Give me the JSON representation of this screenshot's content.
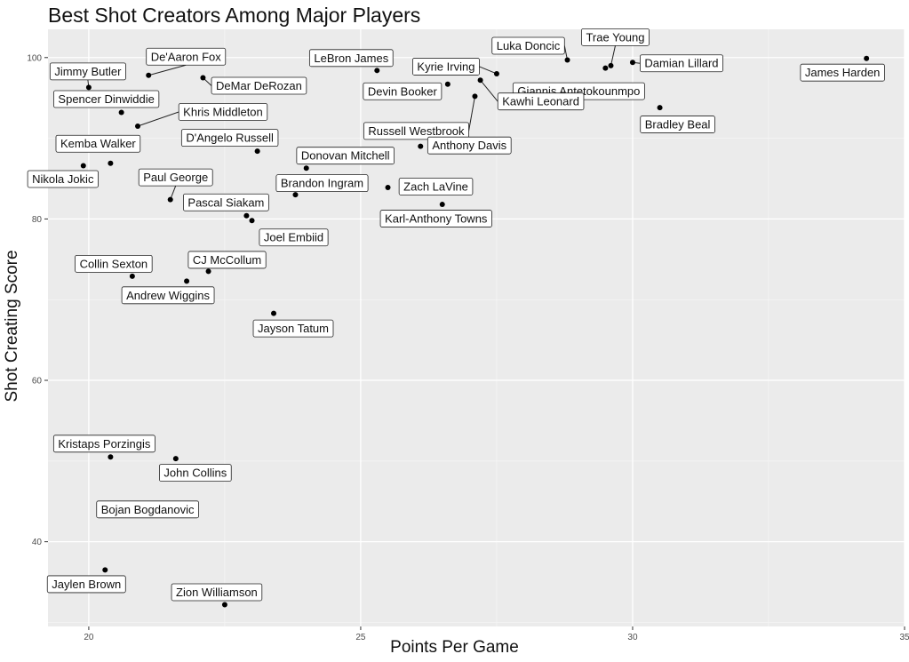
{
  "chart_data": {
    "type": "scatter",
    "title": "Best Shot Creators Among Major Players",
    "xlabel": "Points Per Game",
    "ylabel": "Shot Creating Score",
    "xlim": [
      19.25,
      35
    ],
    "ylim": [
      29.5,
      103.5
    ],
    "x_ticks": [
      20,
      25,
      30,
      35
    ],
    "y_ticks": [
      40,
      60,
      80,
      100
    ],
    "grid": true,
    "points": [
      {
        "name": "James Harden",
        "x": 34.3,
        "y": 99.9
      },
      {
        "name": "Damian Lillard",
        "x": 30.0,
        "y": 99.4
      },
      {
        "name": "Trae Young",
        "x": 29.6,
        "y": 99.0
      },
      {
        "name": "Giannis Antetokounmpo",
        "x": 29.5,
        "y": 98.7
      },
      {
        "name": "Luka Doncic",
        "x": 28.8,
        "y": 99.7
      },
      {
        "name": "Bradley Beal",
        "x": 30.5,
        "y": 93.8
      },
      {
        "name": "Kyrie Irving",
        "x": 27.5,
        "y": 98.0
      },
      {
        "name": "Kawhi Leonard",
        "x": 27.2,
        "y": 97.2
      },
      {
        "name": "Russell Westbrook",
        "x": 27.1,
        "y": 95.2
      },
      {
        "name": "Devin Booker",
        "x": 26.6,
        "y": 96.7
      },
      {
        "name": "LeBron James",
        "x": 25.3,
        "y": 98.4
      },
      {
        "name": "Anthony Davis",
        "x": 26.1,
        "y": 89.0
      },
      {
        "name": "Zach LaVine",
        "x": 25.5,
        "y": 83.9
      },
      {
        "name": "Karl-Anthony Towns",
        "x": 26.5,
        "y": 81.8
      },
      {
        "name": "Donovan Mitchell",
        "x": 24.0,
        "y": 86.3
      },
      {
        "name": "Brandon Ingram",
        "x": 23.8,
        "y": 83.0
      },
      {
        "name": "D'Angelo Russell",
        "x": 23.1,
        "y": 88.4
      },
      {
        "name": "Pascal Siakam",
        "x": 22.9,
        "y": 80.4
      },
      {
        "name": "Joel Embiid",
        "x": 23.0,
        "y": 79.8
      },
      {
        "name": "DeMar DeRozan",
        "x": 22.1,
        "y": 97.5
      },
      {
        "name": "De'Aaron Fox",
        "x": 21.1,
        "y": 97.8
      },
      {
        "name": "Khris Middleton",
        "x": 20.9,
        "y": 91.5
      },
      {
        "name": "Jimmy Butler",
        "x": 20.0,
        "y": 96.3
      },
      {
        "name": "Spencer Dinwiddie",
        "x": 20.6,
        "y": 93.2
      },
      {
        "name": "Kemba Walker",
        "x": 20.4,
        "y": 86.9
      },
      {
        "name": "Nikola Jokic",
        "x": 19.9,
        "y": 86.6
      },
      {
        "name": "Paul George",
        "x": 21.5,
        "y": 82.4
      },
      {
        "name": "CJ McCollum",
        "x": 22.2,
        "y": 73.5
      },
      {
        "name": "Collin Sexton",
        "x": 20.8,
        "y": 72.9
      },
      {
        "name": "Andrew Wiggins",
        "x": 21.8,
        "y": 72.3
      },
      {
        "name": "Jayson Tatum",
        "x": 23.4,
        "y": 68.3
      },
      {
        "name": "Kristaps Porzingis",
        "x": 20.4,
        "y": 50.5
      },
      {
        "name": "John Collins",
        "x": 21.6,
        "y": 50.3
      },
      {
        "name": "Bojan Bogdanovic",
        "x": 20.2,
        "y": 44.0
      },
      {
        "name": "Jaylen Brown",
        "x": 20.3,
        "y": 36.5
      },
      {
        "name": "Zion Williamson",
        "x": 22.5,
        "y": 32.2
      }
    ]
  }
}
